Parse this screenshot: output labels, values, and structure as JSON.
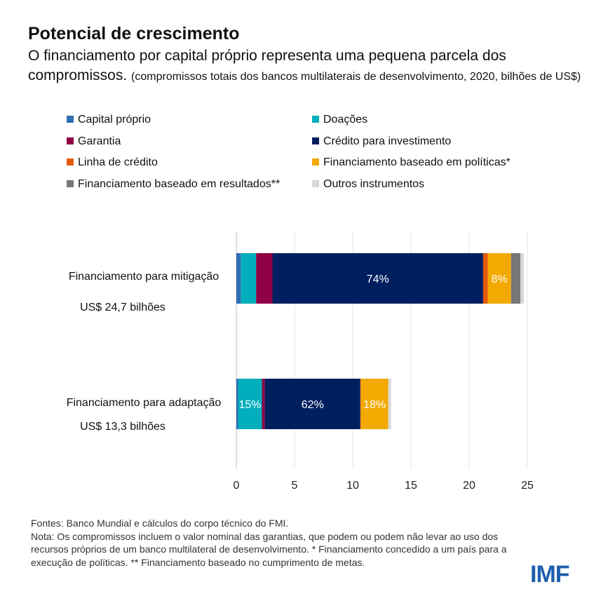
{
  "title": "Potencial de crescimento",
  "subtitle": "O financiamento por capital próprio representa uma pequena parcela dos compromissos.",
  "subtitle_note": "(compromissos totais dos bancos multilaterais de desenvolvimento, 2020, bilhões de US$)",
  "chart_data": {
    "type": "bar",
    "orientation": "horizontal-stacked",
    "categories": [
      "Financiamento para mitigação",
      "Financiamento para adaptação"
    ],
    "category_totals": [
      "US$ 24,7 bilhões",
      "US$ 13,3 bilhões"
    ],
    "series": [
      {
        "name": "Capital próprio",
        "color": "#2e6db4",
        "values": [
          0.4,
          0.15
        ]
      },
      {
        "name": "Doações",
        "color": "#00aebc",
        "values": [
          1.3,
          2.05
        ]
      },
      {
        "name": "Garantia",
        "color": "#8f0045",
        "values": [
          1.4,
          0.25
        ]
      },
      {
        "name": "Crédito para investimento",
        "color": "#001f5f",
        "values": [
          18.1,
          8.2
        ]
      },
      {
        "name": "Linha de crédito",
        "color": "#e35a0a",
        "values": [
          0.4,
          0.05
        ]
      },
      {
        "name": "Financiamento baseado em políticas*",
        "color": "#f2a900",
        "values": [
          2.0,
          2.35
        ]
      },
      {
        "name": "Financiamento baseado em resultados**",
        "color": "#767676",
        "values": [
          0.8,
          0
        ]
      },
      {
        "name": "Outros instrumentos",
        "color": "#d9d9d9",
        "values": [
          0.3,
          0.25
        ]
      }
    ],
    "data_labels": [
      {
        "category": 0,
        "series": 3,
        "text": "74%"
      },
      {
        "category": 0,
        "series": 5,
        "text": "8%"
      },
      {
        "category": 1,
        "series": 1,
        "text": "15%"
      },
      {
        "category": 1,
        "series": 3,
        "text": "62%"
      },
      {
        "category": 1,
        "series": 5,
        "text": "18%"
      }
    ],
    "xlim": [
      0,
      25
    ],
    "xticks": [
      "0",
      "5",
      "10",
      "15",
      "20",
      "25"
    ],
    "grid": true,
    "legend_placement": "top"
  },
  "footer": {
    "sources": "Fontes: Banco Mundial e cálculos do corpo técnico do FMI.",
    "note": "Nota: Os compromissos incluem o valor nominal das garantias, que podem ou podem não levar ao uso dos recursos próprios de um banco multilateral de desenvolvimento. * Financiamento concedido a um país para a execução de políticas. ** Financiamento baseado no cumprimento de metas."
  },
  "logo": "IMF"
}
